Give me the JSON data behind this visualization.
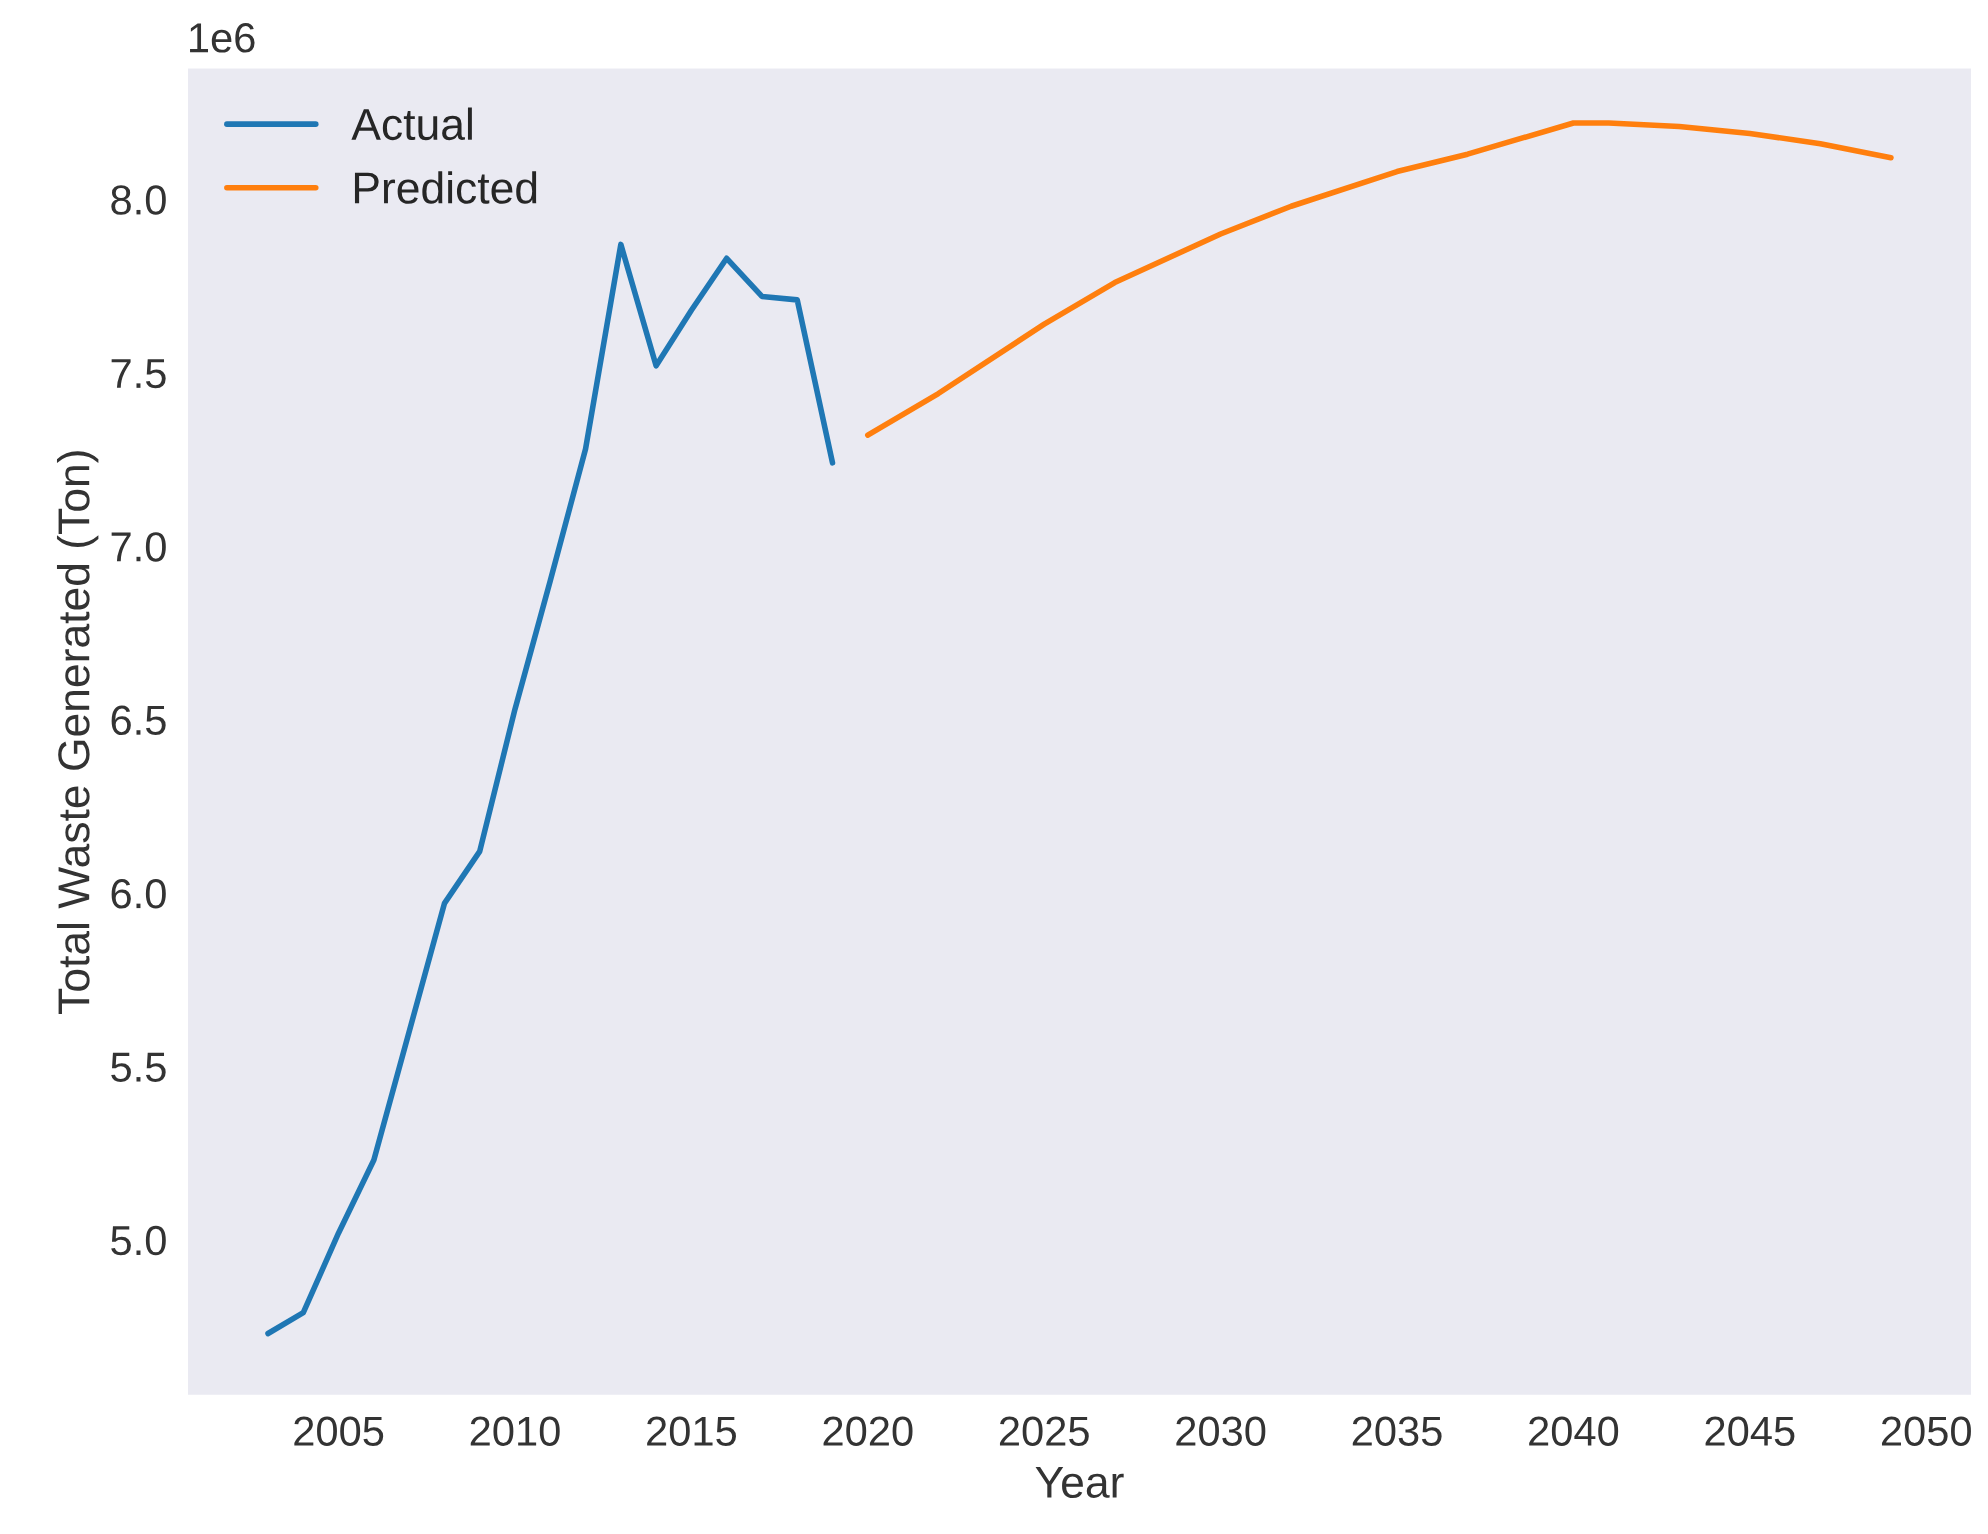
{
  "chart_data": {
    "type": "line",
    "xlabel": "Year",
    "ylabel": "Total Waste Generated (Ton)",
    "annotations": [
      "1e6"
    ],
    "series": [
      {
        "name": "Actual",
        "color": "#1f77b4",
        "x": [
          2003,
          2004,
          2005,
          2006,
          2007,
          2008,
          2009,
          2010,
          2011,
          2012,
          2013,
          2014,
          2015,
          2016,
          2017,
          2018,
          2019
        ],
        "values": [
          4.73,
          4.79,
          5.02,
          5.23,
          5.6,
          5.97,
          6.12,
          6.53,
          6.9,
          7.28,
          7.87,
          7.52,
          7.68,
          7.83,
          7.72,
          7.71,
          7.24
        ]
      },
      {
        "name": "Predicted",
        "color": "#ff7f0e",
        "x": [
          2020,
          2022,
          2025,
          2027,
          2030,
          2032,
          2035,
          2037,
          2040,
          2041,
          2043,
          2045,
          2047,
          2049
        ],
        "values": [
          7.32,
          7.44,
          7.64,
          7.76,
          7.9,
          7.98,
          8.08,
          8.13,
          8.22,
          8.22,
          8.21,
          8.19,
          8.16,
          8.12
        ]
      }
    ],
    "xlim": [
      2000.7,
      2051.3
    ],
    "ylim": [
      4.55,
      8.38
    ],
    "xticks": [
      2005,
      2010,
      2015,
      2020,
      2025,
      2030,
      2035,
      2040,
      2045,
      2050
    ],
    "yticks": [
      {
        "value": 5,
        "label": "5.0"
      },
      5.5,
      {
        "value": 6,
        "label": "6.0"
      },
      6.5,
      {
        "value": 7,
        "label": "7.0"
      },
      7.5,
      {
        "value": 8,
        "label": "8.0"
      }
    ],
    "grid": false,
    "legend": "top left",
    "line_style": "solid",
    "marker": "none"
  }
}
